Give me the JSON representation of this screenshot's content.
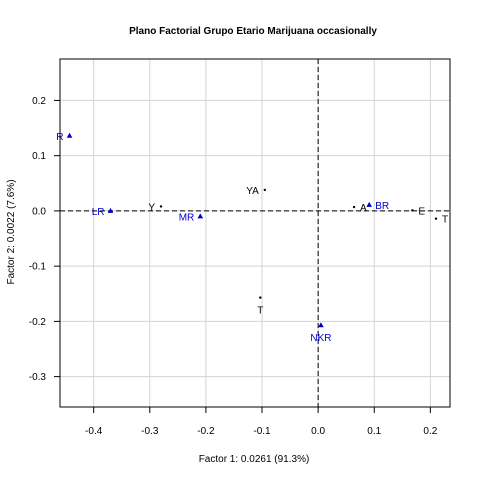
{
  "chart_data": {
    "type": "scatter",
    "title": "Plano Factorial Grupo Etario Marijuana occasionally",
    "xlabel": "Factor 1: 0.0261 (91.3%)",
    "ylabel": "Factor 2: 0.0022 (7.6%)",
    "xlim": [
      -0.46,
      0.235
    ],
    "ylim": [
      -0.355,
      0.275
    ],
    "x_ticks": [
      -0.4,
      -0.3,
      -0.2,
      -0.1,
      0.0,
      0.1,
      0.2
    ],
    "x_tick_labels": [
      "-0.4",
      "-0.3",
      "-0.2",
      "-0.1",
      "0.0",
      "0.1",
      "0.2"
    ],
    "y_ticks": [
      -0.3,
      -0.2,
      -0.1,
      0.0,
      0.1,
      0.2
    ],
    "y_tick_labels": [
      "-0.3",
      "-0.2",
      "-0.1",
      "0.0",
      "0.1",
      "0.2"
    ],
    "grid": true,
    "reference_lines": {
      "x": 0,
      "y": 0,
      "style": "dashed"
    },
    "series": [
      {
        "marker": "dot",
        "color": "#000000",
        "points": [
          {
            "label": "YA",
            "x": -0.095,
            "y": 0.038,
            "label_pos": "left"
          },
          {
            "label": "Y",
            "x": -0.28,
            "y": 0.008,
            "label_pos": "left"
          },
          {
            "label": "A",
            "x": 0.064,
            "y": 0.007,
            "label_pos": "right"
          },
          {
            "label": "E",
            "x": 0.168,
            "y": 0.001,
            "label_pos": "right"
          },
          {
            "label": "T",
            "x": 0.21,
            "y": -0.014,
            "label_pos": "right"
          },
          {
            "label": "T",
            "x": -0.103,
            "y": -0.157,
            "label_pos": "below"
          }
        ]
      },
      {
        "marker": "triangle",
        "color": "#0000cc",
        "points": [
          {
            "label": "R",
            "x": -0.443,
            "y": 0.136,
            "label_pos": "left"
          },
          {
            "label": "LR",
            "x": -0.37,
            "y": 0.0,
            "label_pos": "left"
          },
          {
            "label": "MR",
            "x": -0.21,
            "y": -0.01,
            "label_pos": "left"
          },
          {
            "label": "BR",
            "x": 0.091,
            "y": 0.011,
            "label_pos": "right"
          },
          {
            "label": "NKR",
            "x": 0.005,
            "y": -0.207,
            "label_pos": "below"
          }
        ]
      }
    ]
  }
}
